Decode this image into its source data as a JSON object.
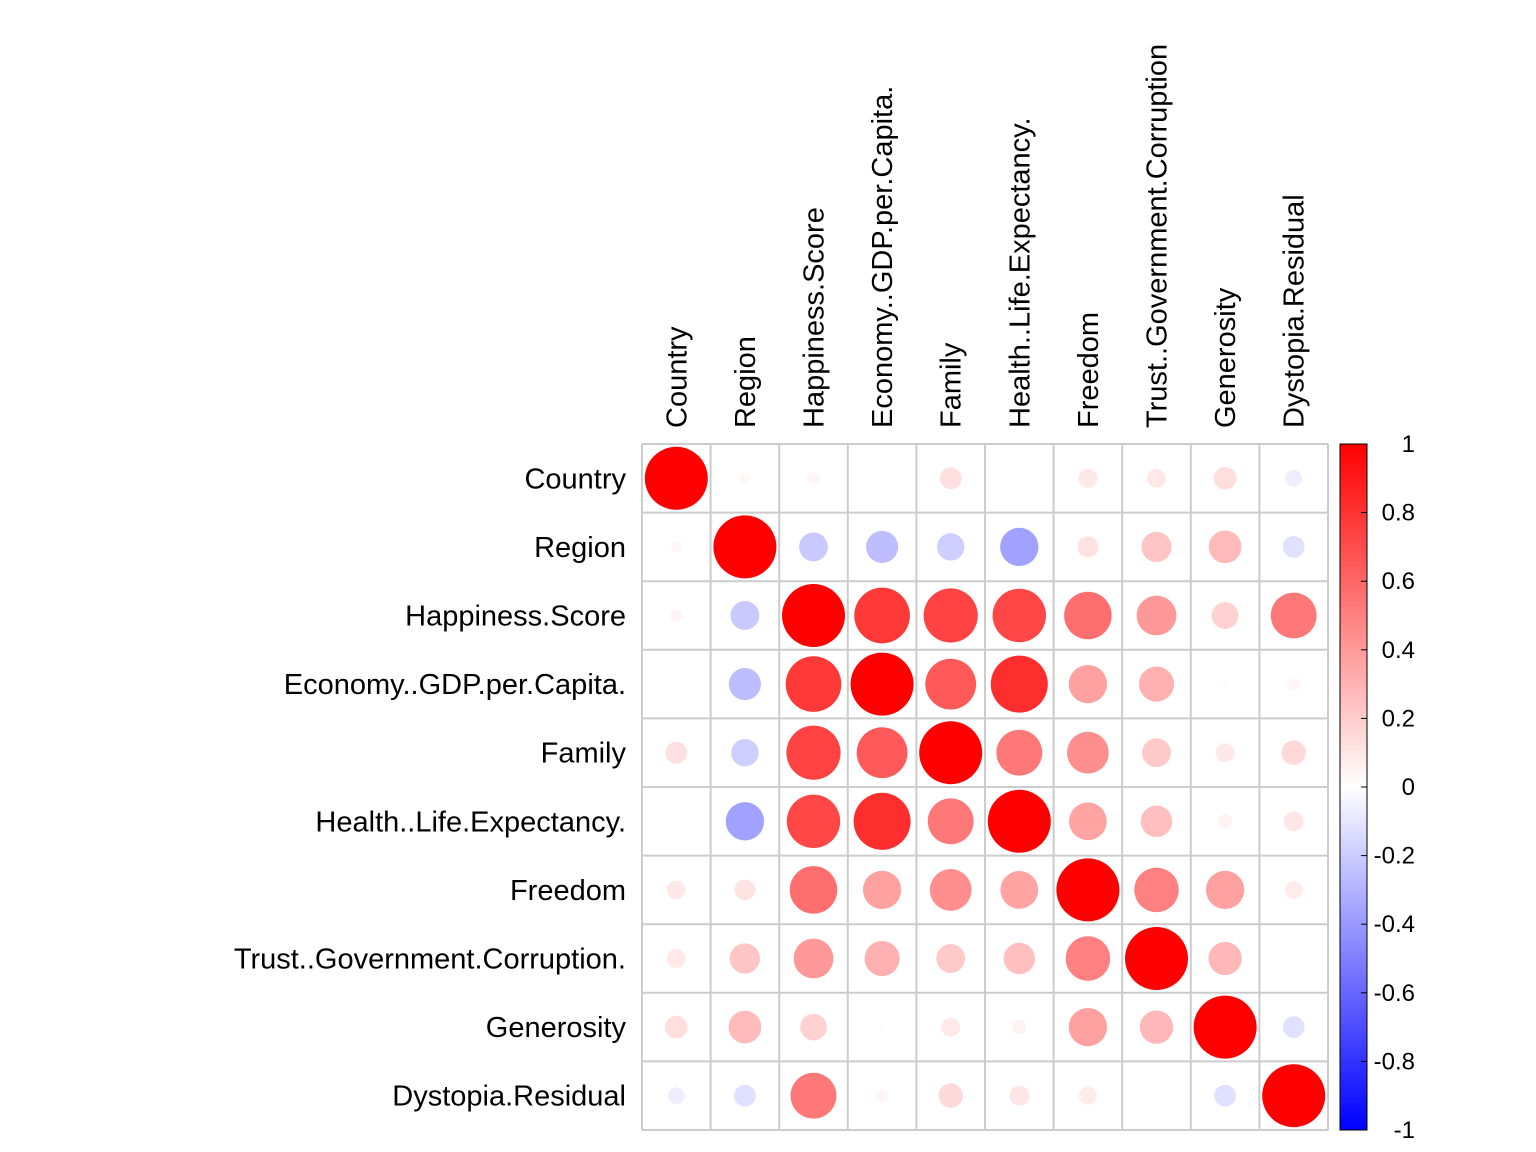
{
  "chart_data": {
    "type": "heatmap",
    "subtype": "correlation-circles",
    "variables": [
      "Country",
      "Region",
      "Happiness.Score",
      "Economy..GDP.per.Capita.",
      "Family",
      "Health..Life.Expectancy.",
      "Freedom",
      "Trust..Government.Corruption.",
      "Generosity",
      "Dystopia.Residual"
    ],
    "column_labels": [
      "Country",
      "Region",
      "Happiness.Score",
      "Economy..GDP.per.Capita.",
      "Family",
      "Health..Life.Expectancy.",
      "Freedom",
      "Trust..Government.Corruption",
      "Generosity",
      "Dystopia.Residual"
    ],
    "matrix": [
      [
        1.0,
        0.03,
        0.04,
        0.0,
        0.12,
        0.0,
        0.09,
        0.09,
        0.13,
        -0.07
      ],
      [
        0.03,
        1.0,
        -0.21,
        -0.26,
        -0.19,
        -0.37,
        0.11,
        0.23,
        0.27,
        -0.12
      ],
      [
        0.04,
        -0.21,
        1.0,
        0.78,
        0.74,
        0.72,
        0.57,
        0.4,
        0.18,
        0.53
      ],
      [
        0.0,
        -0.26,
        0.78,
        1.0,
        0.65,
        0.82,
        0.37,
        0.31,
        -0.01,
        0.04
      ],
      [
        0.12,
        -0.19,
        0.74,
        0.65,
        1.0,
        0.53,
        0.44,
        0.21,
        0.09,
        0.15
      ],
      [
        0.0,
        -0.37,
        0.72,
        0.82,
        0.53,
        1.0,
        0.36,
        0.25,
        0.05,
        0.1
      ],
      [
        0.09,
        0.11,
        0.57,
        0.37,
        0.44,
        0.36,
        1.0,
        0.5,
        0.37,
        0.08
      ],
      [
        0.09,
        0.23,
        0.4,
        0.31,
        0.21,
        0.25,
        0.5,
        1.0,
        0.28,
        0.0
      ],
      [
        0.13,
        0.27,
        0.18,
        -0.01,
        0.09,
        0.05,
        0.37,
        0.28,
        1.0,
        -0.12
      ],
      [
        -0.07,
        -0.12,
        0.53,
        0.04,
        0.15,
        0.1,
        0.08,
        0.0,
        -0.12,
        1.0
      ]
    ],
    "value_range": [
      -1,
      1
    ],
    "colorbar": {
      "ticks": [
        "1",
        "0.8",
        "0.6",
        "0.4",
        "0.2",
        "0",
        "-0.2",
        "-0.4",
        "-0.6",
        "-0.8",
        "-1"
      ],
      "colors": {
        "negative": "#0000FF",
        "zero": "#FFFFFF",
        "positive": "#FF0000"
      }
    },
    "grid": true,
    "grid_color": "#CCCCCC"
  }
}
